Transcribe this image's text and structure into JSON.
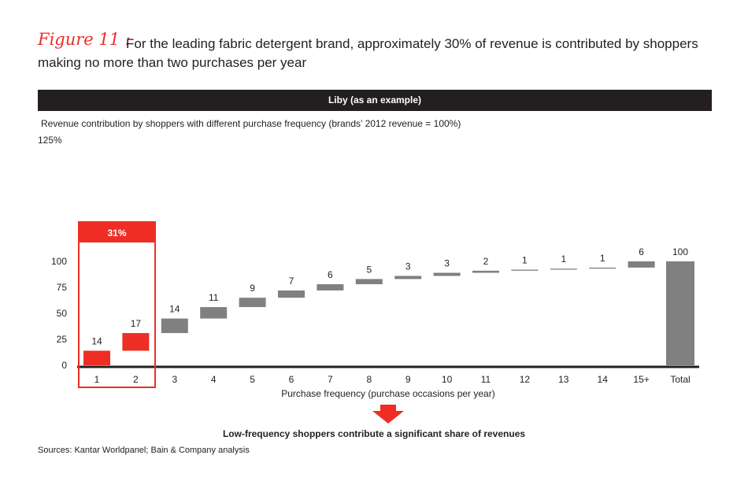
{
  "figure_label": "Figure 11 :",
  "title_line1": "For the leading fabric detergent brand, approximately 30% of revenue is contributed by shoppers",
  "title_line2": "making no more than two purchases per year",
  "header_bar": "Liby (as an example)",
  "highlight_label": "31%",
  "callout": "Low-frequency shoppers contribute a significant share of revenues",
  "sources": "Sources: Kantar Worldpanel; Bain & Company analysis",
  "colors": {
    "accent": "#ee2e24",
    "gray": "#808080",
    "dark": "#231f20"
  },
  "chart_data": {
    "type": "waterfall",
    "title": "Revenue contribution by shoppers with different purchase frequency (brands’ 2012 revenue = 100%)",
    "xlabel": "Purchase frequency (purchase occasions per year)",
    "ylabel": "",
    "ylim": [
      0,
      125
    ],
    "ytick_labels": [
      "0",
      "25",
      "50",
      "75",
      "100",
      "125%"
    ],
    "yticks": [
      0,
      25,
      50,
      75,
      100,
      125
    ],
    "categories": [
      "1",
      "2",
      "3",
      "4",
      "5",
      "6",
      "7",
      "8",
      "9",
      "10",
      "11",
      "12",
      "13",
      "14",
      "15+",
      "Total"
    ],
    "values": [
      14,
      17,
      14,
      11,
      9,
      7,
      6,
      5,
      3,
      3,
      2,
      1,
      1,
      1,
      6,
      100
    ],
    "data_labels": [
      "14",
      "17",
      "14",
      "11",
      "9",
      "7",
      "6",
      "5",
      "3",
      "3",
      "2",
      "1",
      "1",
      "1",
      "6",
      "100"
    ],
    "highlighted": [
      "1",
      "2"
    ],
    "total_category": "Total"
  }
}
